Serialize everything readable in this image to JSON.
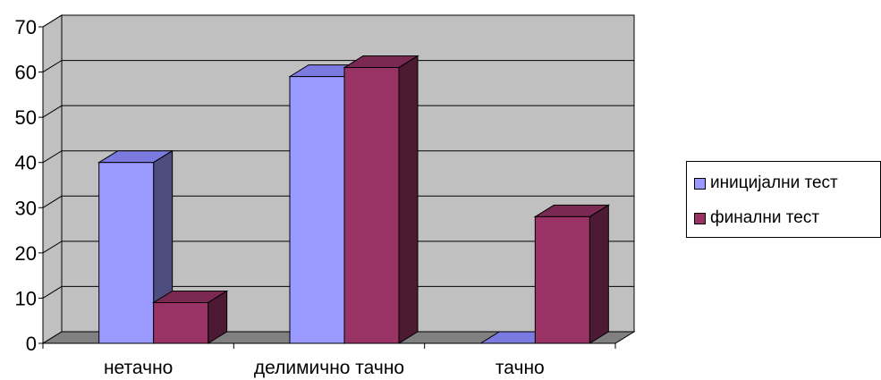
{
  "chart_data": {
    "type": "bar",
    "categories": [
      "нетачно",
      "делимично тачно",
      "тачно"
    ],
    "series": [
      {
        "name": "иницијални тест",
        "values": [
          40,
          59,
          0
        ]
      },
      {
        "name": "финални тест",
        "values": [
          9,
          61,
          28
        ]
      }
    ],
    "ylim": [
      0,
      70
    ],
    "yticks": [
      0,
      10,
      20,
      30,
      40,
      50,
      60,
      70
    ],
    "grid": true,
    "legend_position": "right",
    "style": "3d-clustered-column"
  },
  "colors": {
    "series1_front": "#9999ff",
    "series1_side": "#4d4d80",
    "series1_top": "#7a7ae0",
    "series2_front": "#993366",
    "series2_side": "#4d1a33",
    "series2_top": "#7a2952",
    "wall": "#c0c0c0",
    "floor": "#808080"
  }
}
